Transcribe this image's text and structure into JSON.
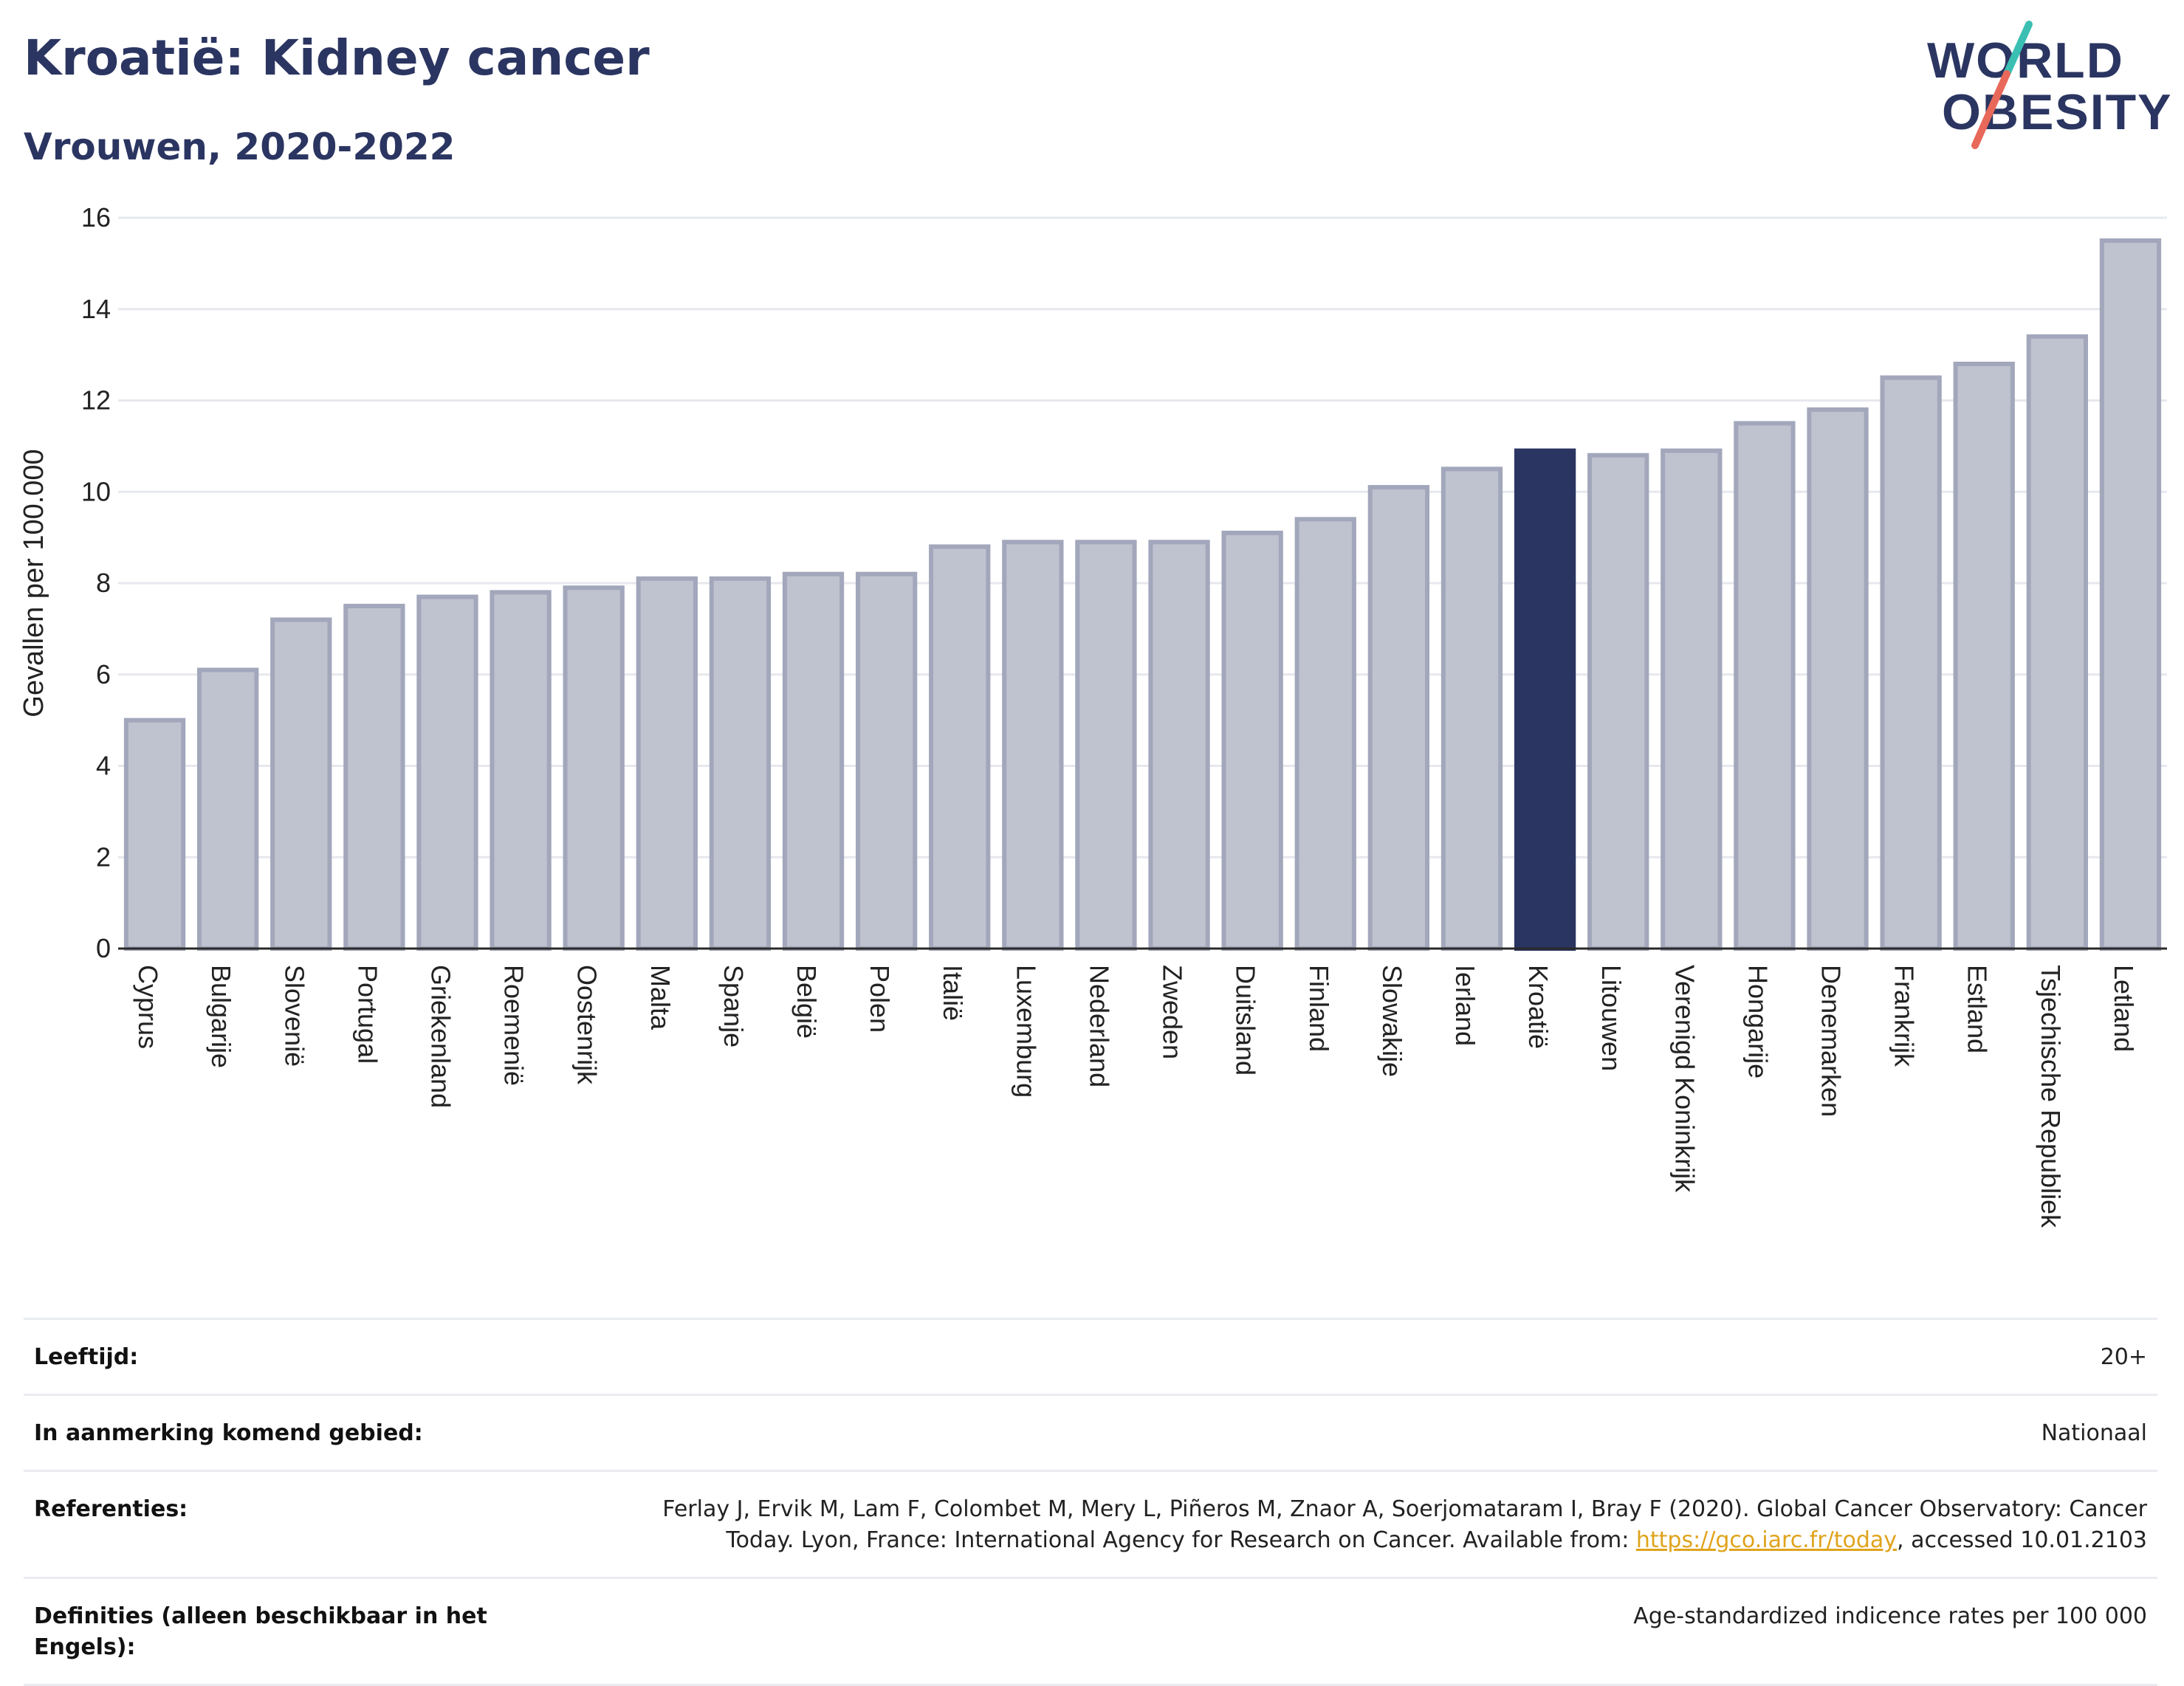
{
  "header": {
    "title": "Kroatië: Kidney cancer",
    "subtitle": "Vrouwen, 2020-2022"
  },
  "logo": {
    "line1": "WORLD",
    "line2": "OBESITY"
  },
  "colors": {
    "highlight": "#2b3561",
    "bar_fill": "#bfc2cf",
    "bar_stroke": "#a2a7bb",
    "title": "#2b3561",
    "logo_slash_top": "#3bbfb3",
    "logo_slash_bottom": "#e8685a",
    "link": "#e0a31b"
  },
  "chart_data": {
    "type": "bar",
    "title": "Kroatië: Kidney cancer",
    "subtitle": "Vrouwen, 2020-2022",
    "ylabel": "Gevallen per 100.000",
    "xlabel": "",
    "ylim": [
      0,
      16
    ],
    "yticks": [
      0,
      2,
      4,
      6,
      8,
      10,
      12,
      14,
      16
    ],
    "grid": true,
    "highlight": "Kroatië",
    "categories": [
      "Cyprus",
      "Bulgarije",
      "Slovenië",
      "Portugal",
      "Griekenland",
      "Roemenië",
      "Oostenrijk",
      "Malta",
      "Spanje",
      "België",
      "Polen",
      "Italië",
      "Luxemburg",
      "Nederland",
      "Zweden",
      "Duitsland",
      "Finland",
      "Slowakije",
      "Ierland",
      "Kroatië",
      "Litouwen",
      "Verenigd Koninkrijk",
      "Hongarije",
      "Denemarken",
      "Frankrijk",
      "Estland",
      "Tsjechische Republiek",
      "Letland"
    ],
    "values": [
      5.0,
      6.1,
      7.2,
      7.5,
      7.7,
      7.8,
      7.9,
      8.1,
      8.1,
      8.2,
      8.2,
      8.8,
      8.9,
      8.9,
      8.9,
      9.1,
      9.4,
      10.1,
      10.5,
      10.9,
      10.8,
      10.9,
      11.5,
      11.8,
      12.5,
      12.8,
      13.4,
      15.5
    ]
  },
  "info": {
    "rows": [
      {
        "label": "Leeftijd:",
        "value": "20+"
      },
      {
        "label": "In aanmerking komend gebied:",
        "value": "Nationaal"
      },
      {
        "label": "Referenties:",
        "value_line1": "Ferlay J, Ervik M, Lam F, Colombet M, Mery L, Piñeros M, Znaor A, Soerjomataram I, Bray F (2020). Global Cancer Observatory: Cancer",
        "value_pre": "Today. Lyon, France: International Agency for Research on Cancer. Available from: ",
        "link": "https://gco.iarc.fr/today",
        "value_post": ", accessed 10.01.2103"
      },
      {
        "label": "Definities (alleen beschikbaar in het Engels):",
        "value": "Age-standardized indicence rates per 100 000"
      }
    ]
  }
}
